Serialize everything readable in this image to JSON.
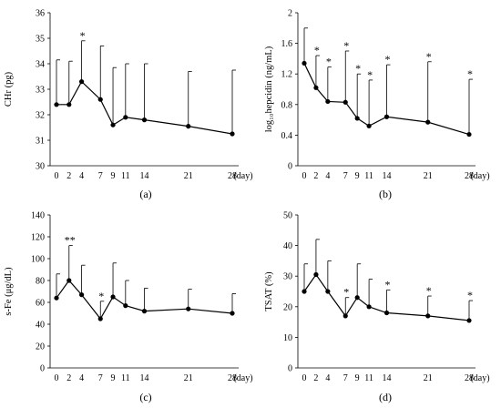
{
  "chart_data": [
    {
      "type": "line",
      "panel_label": "(a)",
      "ylabel": "CHr (pg)",
      "ylim": [
        30,
        36
      ],
      "yticks": [
        "30",
        "31",
        "32",
        "33",
        "34",
        "35",
        "36"
      ],
      "x": [
        0,
        2,
        4,
        7,
        9,
        11,
        14,
        21,
        28
      ],
      "xtick_labels": [
        "0",
        "2",
        "4",
        "7",
        "9",
        "11",
        "14",
        "21",
        "28"
      ],
      "x_unit": "(day)",
      "values": [
        32.4,
        32.4,
        33.3,
        32.6,
        31.6,
        31.9,
        31.8,
        31.55,
        31.25
      ],
      "error_upper": [
        34.15,
        34.1,
        34.9,
        34.7,
        33.85,
        34.0,
        34.0,
        33.7,
        33.75
      ],
      "markers": [
        "",
        "",
        "*",
        "",
        "",
        "",
        "",
        "",
        ""
      ]
    },
    {
      "type": "line",
      "panel_label": "(b)",
      "ylabel": "log₁₀hepcidin (ng/mL)",
      "ylim": [
        0,
        2
      ],
      "yticks": [
        "0",
        "0.4",
        "0.8",
        "1.2",
        "1.6",
        "2"
      ],
      "x": [
        0,
        2,
        4,
        7,
        9,
        11,
        14,
        21,
        28
      ],
      "xtick_labels": [
        "0",
        "2",
        "4",
        "7",
        "9",
        "11",
        "14",
        "21",
        "28"
      ],
      "x_unit": "(day)",
      "values": [
        1.34,
        1.02,
        0.84,
        0.83,
        0.62,
        0.52,
        0.64,
        0.57,
        0.41
      ],
      "error_upper": [
        1.8,
        1.44,
        1.29,
        1.5,
        1.2,
        1.12,
        1.32,
        1.36,
        1.13
      ],
      "markers": [
        "",
        "*",
        "*",
        "*",
        "*",
        "*",
        "*",
        "*",
        "*"
      ]
    },
    {
      "type": "line",
      "panel_label": "(c)",
      "ylabel": "s-Fe (μg/dL)",
      "ylim": [
        0,
        140
      ],
      "yticks": [
        "0",
        "20",
        "40",
        "60",
        "80",
        "100",
        "120",
        "140"
      ],
      "x": [
        0,
        2,
        4,
        7,
        9,
        11,
        14,
        21,
        28
      ],
      "xtick_labels": [
        "0",
        "2",
        "4",
        "7",
        "9",
        "11",
        "14",
        "21",
        "28"
      ],
      "x_unit": "(day)",
      "values": [
        64,
        80,
        67,
        45,
        65,
        57,
        52,
        54,
        50
      ],
      "error_upper": [
        86,
        112,
        94,
        61,
        96,
        80,
        73,
        72,
        68
      ],
      "markers": [
        "",
        "**",
        "",
        "*",
        "",
        "",
        "",
        "",
        ""
      ]
    },
    {
      "type": "line",
      "panel_label": "(d)",
      "ylabel": "TSAT (%)",
      "ylim": [
        0,
        50
      ],
      "yticks": [
        "0",
        "10",
        "20",
        "30",
        "40",
        "50"
      ],
      "x": [
        0,
        2,
        4,
        7,
        9,
        11,
        14,
        21,
        28
      ],
      "xtick_labels": [
        "0",
        "2",
        "4",
        "7",
        "9",
        "11",
        "14",
        "21",
        "28"
      ],
      "x_unit": "(day)",
      "values": [
        25,
        30.5,
        25,
        17,
        23,
        20,
        18,
        17,
        15.5
      ],
      "error_upper": [
        34,
        42,
        35,
        23,
        34,
        29,
        25.5,
        23.5,
        22
      ],
      "markers": [
        "",
        "",
        "",
        "*",
        "",
        "",
        "*",
        "*",
        "*"
      ]
    }
  ]
}
